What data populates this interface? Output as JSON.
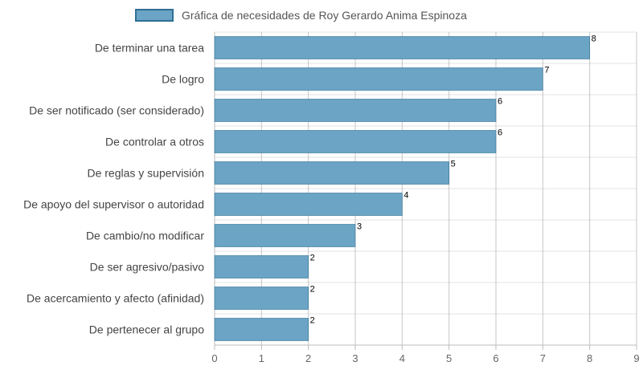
{
  "chart_data": {
    "type": "bar",
    "orientation": "horizontal",
    "legend": "Gráfica de necesidades de Roy Gerardo Anima Espinoza",
    "legend_position": "top",
    "categories": [
      "De terminar una tarea",
      "De logro",
      "De ser notificado (ser considerado)",
      "De controlar a otros",
      "De reglas y supervisión",
      "De apoyo del supervisor o autoridad",
      "De cambio/no modificar",
      "De ser agresivo/pasivo",
      "De acercamiento y afecto (afinidad)",
      "De pertenecer al grupo"
    ],
    "values": [
      8,
      7,
      6,
      6,
      5,
      4,
      3,
      2,
      2,
      2
    ],
    "xlim": [
      0,
      9
    ],
    "xticks": [
      "0",
      "1",
      "2",
      "3",
      "4",
      "5",
      "6",
      "7",
      "8",
      "9"
    ],
    "grid": true,
    "colors": {
      "bar_fill": "#6ba4c4",
      "bar_stroke": "#2f6f97",
      "grid": "#cccccc"
    }
  }
}
